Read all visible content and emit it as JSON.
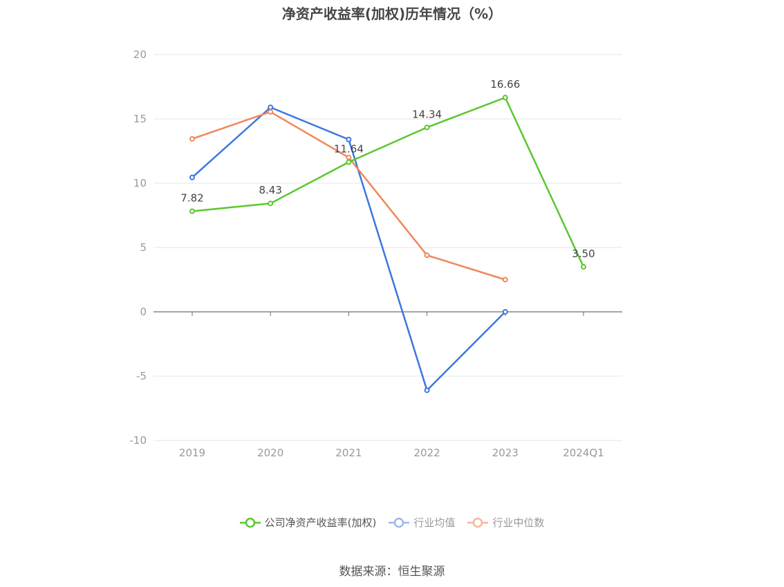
{
  "title": "净资产收益率(加权)历年情况（%）",
  "source": "数据来源：恒生聚源",
  "chart_data": {
    "type": "line",
    "categories": [
      "2019",
      "2020",
      "2021",
      "2022",
      "2023",
      "2024Q1"
    ],
    "ylim": [
      -10,
      20
    ],
    "yticks": [
      20,
      15,
      10,
      5,
      0,
      -5,
      -10
    ],
    "grid": true,
    "legend_position": "bottom",
    "series": [
      {
        "name": "公司净资产收益率(加权)",
        "color": "#5ac72e",
        "values": [
          7.82,
          8.43,
          11.64,
          14.34,
          16.66,
          3.5
        ],
        "labels": [
          "7.82",
          "8.43",
          "11.64",
          "14.34",
          "16.66",
          "3.50"
        ]
      },
      {
        "name": "行业均值",
        "color": "#3a76e0",
        "values": [
          10.45,
          15.9,
          13.4,
          -6.1,
          0.0,
          null
        ]
      },
      {
        "name": "行业中位数",
        "color": "#f0875a",
        "values": [
          13.45,
          15.55,
          12.0,
          4.4,
          2.5,
          null
        ]
      }
    ]
  }
}
